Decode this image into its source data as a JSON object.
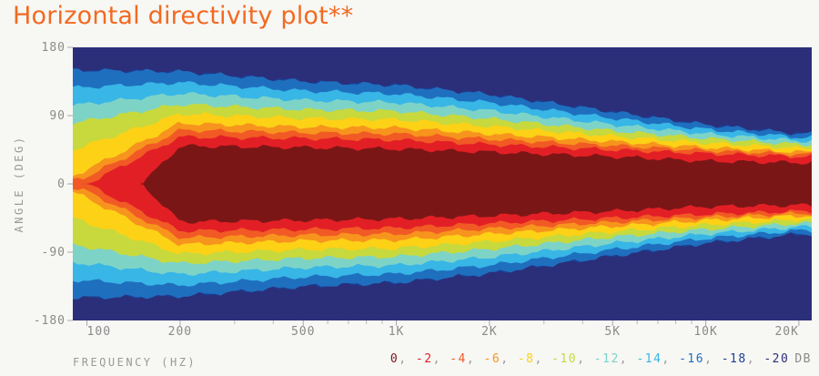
{
  "title": "Horizontal directivity plot**",
  "chart_data": {
    "type": "heatmap",
    "title": "Horizontal directivity plot**",
    "xlabel": "FREQUENCY (HZ)",
    "ylabel": "ANGLE (DEG)",
    "x_scale": "log",
    "xlim": [
      90,
      22000
    ],
    "ylim": [
      -180,
      180
    ],
    "x_ticks": [
      {
        "value": 100,
        "label": "100"
      },
      {
        "value": 200,
        "label": "200"
      },
      {
        "value": 500,
        "label": "500"
      },
      {
        "value": 1000,
        "label": "1K"
      },
      {
        "value": 2000,
        "label": "2K"
      },
      {
        "value": 5000,
        "label": "5K"
      },
      {
        "value": 10000,
        "label": "10K"
      },
      {
        "value": 20000,
        "label": "20K"
      }
    ],
    "y_ticks": [
      {
        "value": 180,
        "label": "180"
      },
      {
        "value": 90,
        "label": "90"
      },
      {
        "value": 0,
        "label": "0"
      },
      {
        "value": -90,
        "label": "-90"
      },
      {
        "value": -180,
        "label": "-180"
      }
    ],
    "levels": [
      0,
      -2,
      -4,
      -6,
      -8,
      -10,
      -12,
      -14,
      -16,
      -18,
      -20
    ],
    "level_colors": [
      "#7b1616",
      "#e31f26",
      "#f15a24",
      "#f7941d",
      "#fcd116",
      "#c7d93d",
      "#7ed3c7",
      "#38b6e6",
      "#1f6fbf",
      "#1c3f95",
      "#2b2f7a"
    ],
    "level_labels": [
      "0",
      "-2",
      "-4",
      "-6",
      "-8",
      "-10",
      "-12",
      "-14",
      "-16",
      "-18",
      "-20"
    ],
    "unit": "DB",
    "contours": [
      {
        "level": 0,
        "freq": [
          150,
          200,
          500,
          1000,
          2000,
          5000,
          10000,
          20000
        ],
        "half_angle_deg": [
          0,
          50,
          48,
          46,
          42,
          36,
          30,
          28
        ]
      },
      {
        "level": -2,
        "freq": [
          100,
          200,
          500,
          1000,
          2000,
          5000,
          10000,
          20000
        ],
        "half_angle_deg": [
          0,
          62,
          60,
          58,
          52,
          45,
          40,
          36
        ]
      },
      {
        "level": -6,
        "freq": [
          90,
          200,
          500,
          1000,
          2000,
          5000,
          10000,
          20000
        ],
        "half_angle_deg": [
          10,
          80,
          75,
          74,
          66,
          56,
          48,
          42
        ]
      },
      {
        "level": -10,
        "freq": [
          90,
          200,
          500,
          1000,
          2000,
          5000,
          10000,
          20000
        ],
        "half_angle_deg": [
          80,
          105,
          98,
          96,
          86,
          70,
          60,
          52
        ]
      },
      {
        "level": -16,
        "freq": [
          90,
          200,
          500,
          1000,
          2000,
          5000,
          10000,
          20000
        ],
        "half_angle_deg": [
          150,
          148,
          135,
          130,
          118,
          95,
          78,
          66
        ]
      }
    ]
  }
}
